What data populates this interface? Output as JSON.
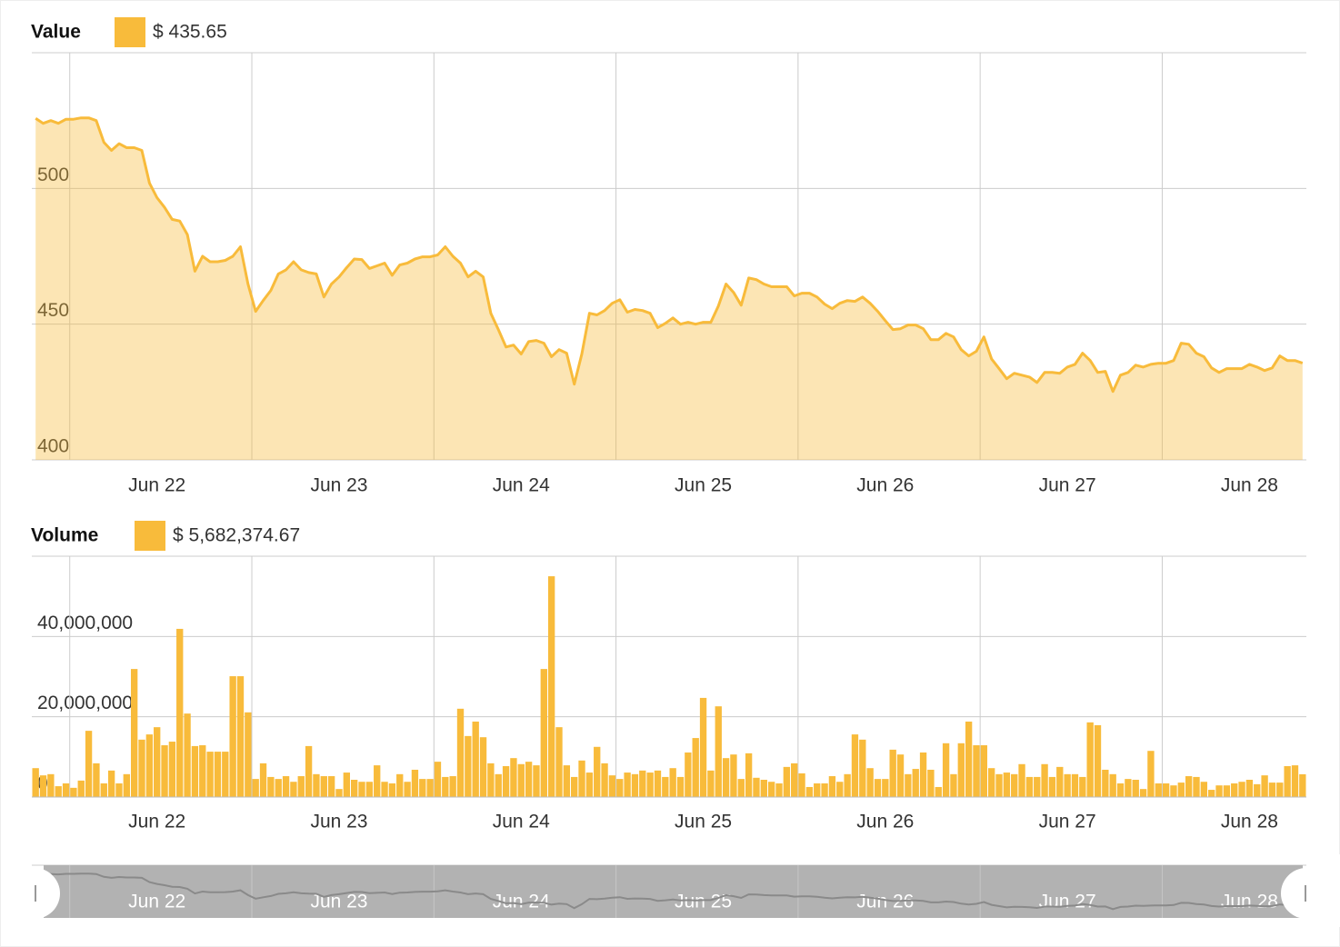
{
  "chart_data": [
    {
      "type": "area",
      "title": "Value",
      "legend_label": "$ 435.65",
      "categories": [
        null,
        null,
        null,
        null,
        null,
        null,
        null,
        null,
        null,
        null,
        null,
        null,
        null,
        null,
        null,
        null,
        "Jun 22",
        null,
        null,
        null,
        null,
        null,
        null,
        null,
        null,
        null,
        null,
        null,
        null,
        null,
        null,
        null,
        null,
        null,
        null,
        null,
        null,
        null,
        null,
        null,
        "Jun 23",
        null,
        null,
        null,
        null,
        null,
        null,
        null,
        null,
        null,
        null,
        null,
        null,
        null,
        null,
        null,
        null,
        null,
        null,
        null,
        null,
        null,
        null,
        null,
        "Jun 24",
        null,
        null,
        null,
        null,
        null,
        null,
        null,
        null,
        null,
        null,
        null,
        null,
        null,
        null,
        null,
        null,
        null,
        null,
        null,
        null,
        null,
        null,
        null,
        "Jun 25",
        null,
        null,
        null,
        null,
        null,
        null,
        null,
        null,
        null,
        null,
        null,
        null,
        null,
        null,
        null,
        null,
        null,
        null,
        null,
        null,
        null,
        null,
        null,
        "Jun 26",
        null,
        null,
        null,
        null,
        null,
        null,
        null,
        null,
        null,
        null,
        null,
        null,
        null,
        null,
        null,
        null,
        null,
        null,
        null,
        null,
        null,
        null,
        null,
        "Jun 27",
        null,
        null,
        null,
        null,
        null,
        null,
        null,
        null,
        null,
        null,
        null,
        null,
        null,
        null,
        null,
        null,
        null,
        null,
        null,
        null,
        null,
        null,
        null,
        "Jun 28",
        null,
        null,
        null,
        null,
        null,
        null,
        null
      ],
      "series": [
        {
          "color": "#f8bb3b",
          "values": [
            525.8,
            524,
            525,
            524,
            525.5,
            525.5,
            526,
            526,
            525,
            517,
            514,
            516.5,
            515,
            515,
            514,
            502,
            496.6,
            493,
            488.6,
            488,
            483,
            469.5,
            475,
            473,
            473,
            473.5,
            475,
            478.5,
            464.8,
            454.7,
            458.7,
            462.4,
            468.5,
            470,
            473,
            470,
            469,
            468.5,
            460,
            464.8,
            467.4,
            470.8,
            474,
            473.8,
            470.5,
            471.5,
            472.5,
            468,
            471.8,
            472.5,
            474,
            474.8,
            474.8,
            475.5,
            478.5,
            475,
            472.5,
            467.4,
            469.5,
            467.4,
            454,
            448,
            441.6,
            442.3,
            439,
            443.6,
            444,
            443,
            438,
            440.6,
            439.3,
            427.9,
            439,
            454,
            453.4,
            455,
            457.7,
            459,
            454.4,
            455.4,
            455,
            454,
            448.7,
            450.3,
            452.3,
            450,
            450.7,
            450,
            450.7,
            450.7,
            456.7,
            464.8,
            461.7,
            457,
            467,
            466.4,
            464.8,
            463.8,
            463.8,
            463.8,
            460.4,
            461.4,
            461.4,
            460,
            457.4,
            455.7,
            457.7,
            458.7,
            458.4,
            460,
            457.7,
            454.7,
            451.3,
            448,
            448.3,
            449.7,
            449.7,
            448.3,
            444.3,
            444.3,
            446.6,
            445.3,
            440.6,
            438.3,
            440,
            445.3,
            437.2,
            433.6,
            429.9,
            431.9,
            431.2,
            430.5,
            428.5,
            432.2,
            432.2,
            431.9,
            434.2,
            435.2,
            439.3,
            436.6,
            432.2,
            432.6,
            425.2,
            431.2,
            432.2,
            434.9,
            434.2,
            435.2,
            435.6,
            435.6,
            436.6,
            443,
            442.6,
            439.3,
            438,
            433.9,
            432.2,
            433.6,
            433.6,
            433.6,
            435.2,
            434.2,
            432.9,
            433.9,
            438.3,
            436.6,
            436.6,
            435.65
          ]
        }
      ],
      "ylim": [
        400,
        550
      ],
      "yticks": [
        400,
        450,
        500
      ],
      "grid": true
    },
    {
      "type": "bar",
      "title": "Volume",
      "legend_label": "$ 5,682,374.67",
      "categories": [
        null,
        null,
        null,
        null,
        null,
        null,
        null,
        null,
        null,
        null,
        null,
        null,
        null,
        null,
        null,
        null,
        "Jun 22",
        null,
        null,
        null,
        null,
        null,
        null,
        null,
        null,
        null,
        null,
        null,
        null,
        null,
        null,
        null,
        null,
        null,
        null,
        null,
        null,
        null,
        null,
        null,
        "Jun 23",
        null,
        null,
        null,
        null,
        null,
        null,
        null,
        null,
        null,
        null,
        null,
        null,
        null,
        null,
        null,
        null,
        null,
        null,
        null,
        null,
        null,
        null,
        null,
        "Jun 24",
        null,
        null,
        null,
        null,
        null,
        null,
        null,
        null,
        null,
        null,
        null,
        null,
        null,
        null,
        null,
        null,
        null,
        null,
        null,
        null,
        null,
        null,
        null,
        "Jun 25",
        null,
        null,
        null,
        null,
        null,
        null,
        null,
        null,
        null,
        null,
        null,
        null,
        null,
        null,
        null,
        null,
        null,
        null,
        null,
        null,
        null,
        null,
        null,
        "Jun 26",
        null,
        null,
        null,
        null,
        null,
        null,
        null,
        null,
        null,
        null,
        null,
        null,
        null,
        null,
        null,
        null,
        null,
        null,
        null,
        null,
        null,
        null,
        null,
        "Jun 27",
        null,
        null,
        null,
        null,
        null,
        null,
        null,
        null,
        null,
        null,
        null,
        null,
        null,
        null,
        null,
        null,
        null,
        null,
        null,
        null,
        null,
        null,
        null,
        "Jun 28",
        null,
        null,
        null,
        null,
        null,
        null,
        null
      ],
      "series": [
        {
          "color": "#f8bb3b",
          "values": [
            7200000,
            5400000,
            5700000,
            2700000,
            3400000,
            2300000,
            4100000,
            16500000,
            8400000,
            3400000,
            6600000,
            3400000,
            5700000,
            31900000,
            14300000,
            15600000,
            17400000,
            12900000,
            13800000,
            41900000,
            20800000,
            12700000,
            12900000,
            11300000,
            11300000,
            11300000,
            30100000,
            30100000,
            21100000,
            4500000,
            8400000,
            5000000,
            4500000,
            5200000,
            3800000,
            5200000,
            12700000,
            5700000,
            5200000,
            5200000,
            2000000,
            6100000,
            4300000,
            3800000,
            3800000,
            7900000,
            3800000,
            3400000,
            5700000,
            3800000,
            6800000,
            4500000,
            4500000,
            8800000,
            5000000,
            5200000,
            22000000,
            15200000,
            18800000,
            14900000,
            8400000,
            5700000,
            7700000,
            9700000,
            8200000,
            8800000,
            7900000,
            31900000,
            55000000,
            17400000,
            7900000,
            5000000,
            9100000,
            6100000,
            12500000,
            8400000,
            5400000,
            4500000,
            6100000,
            5700000,
            6600000,
            6100000,
            6600000,
            5000000,
            7200000,
            5000000,
            11100000,
            14700000,
            24700000,
            6600000,
            22600000,
            9700000,
            10600000,
            4500000,
            10900000,
            4800000,
            4300000,
            3800000,
            3400000,
            7500000,
            8400000,
            5900000,
            2500000,
            3400000,
            3400000,
            5200000,
            3800000,
            5700000,
            15600000,
            14300000,
            7200000,
            4500000,
            4500000,
            11800000,
            10600000,
            5700000,
            7000000,
            11100000,
            6800000,
            2500000,
            13400000,
            5700000,
            13400000,
            18800000,
            12900000,
            12900000,
            7200000,
            5700000,
            6100000,
            5700000,
            8200000,
            5000000,
            5000000,
            8200000,
            5000000,
            7500000,
            5700000,
            5700000,
            5000000,
            18600000,
            17900000,
            6800000,
            5700000,
            3400000,
            4500000,
            4300000,
            2000000,
            11500000,
            3400000,
            3400000,
            2900000,
            3600000,
            5200000,
            5000000,
            3800000,
            1800000,
            2900000,
            2900000,
            3400000,
            3800000,
            4300000,
            3200000,
            5400000,
            3600000,
            3600000,
            7700000,
            7900000,
            5682374.67
          ]
        }
      ],
      "ylim": [
        0,
        60000000
      ],
      "yticks": [
        0,
        {
          "value": 20000000,
          "label": "20,000,000"
        },
        {
          "value": 40000000,
          "label": "40,000,000"
        }
      ],
      "grid": true
    }
  ]
}
